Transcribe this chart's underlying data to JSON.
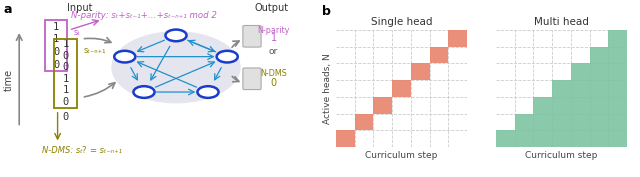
{
  "fig_width": 6.4,
  "fig_height": 1.77,
  "dpi": 100,
  "panel_a": {
    "label": "a",
    "input_label": "Input",
    "output_label": "Output",
    "time_label": "time",
    "nparity_formula": "N-parity: sₜ+sₜ₋₁+…+sₜ₋ₙ₊₁ mod 2",
    "nparity_color": "#c060c8",
    "ndms_color": "#8b8000",
    "output_nparity": "N-parity",
    "output_1": "1",
    "output_or": "or",
    "output_ndms": "N-DMS",
    "output_0": "0",
    "network_color": "#1a3ccc",
    "network_edge_color": "#2090cc",
    "network_bg": "#e5e5ef",
    "st_label": "sₜ",
    "st_n1_label": "sₜ₋ₙ₊₁",
    "ndms_bottom": "N-DMS: sₜ",
    "ndms_question": " ?",
    "ndms_equals": " = sₜ₋ₙ₊₁"
  },
  "panel_b": {
    "label": "b",
    "single_head_title": "Single head",
    "multi_head_title": "Multi head",
    "ylabel": "Active heads, N",
    "xlabel": "Curriculum step",
    "n_steps": 7,
    "single_head_color": "#e8836a",
    "multi_head_color": "#7dc4a0",
    "grid_color": "#cccccc",
    "axis_color": "#999999"
  }
}
